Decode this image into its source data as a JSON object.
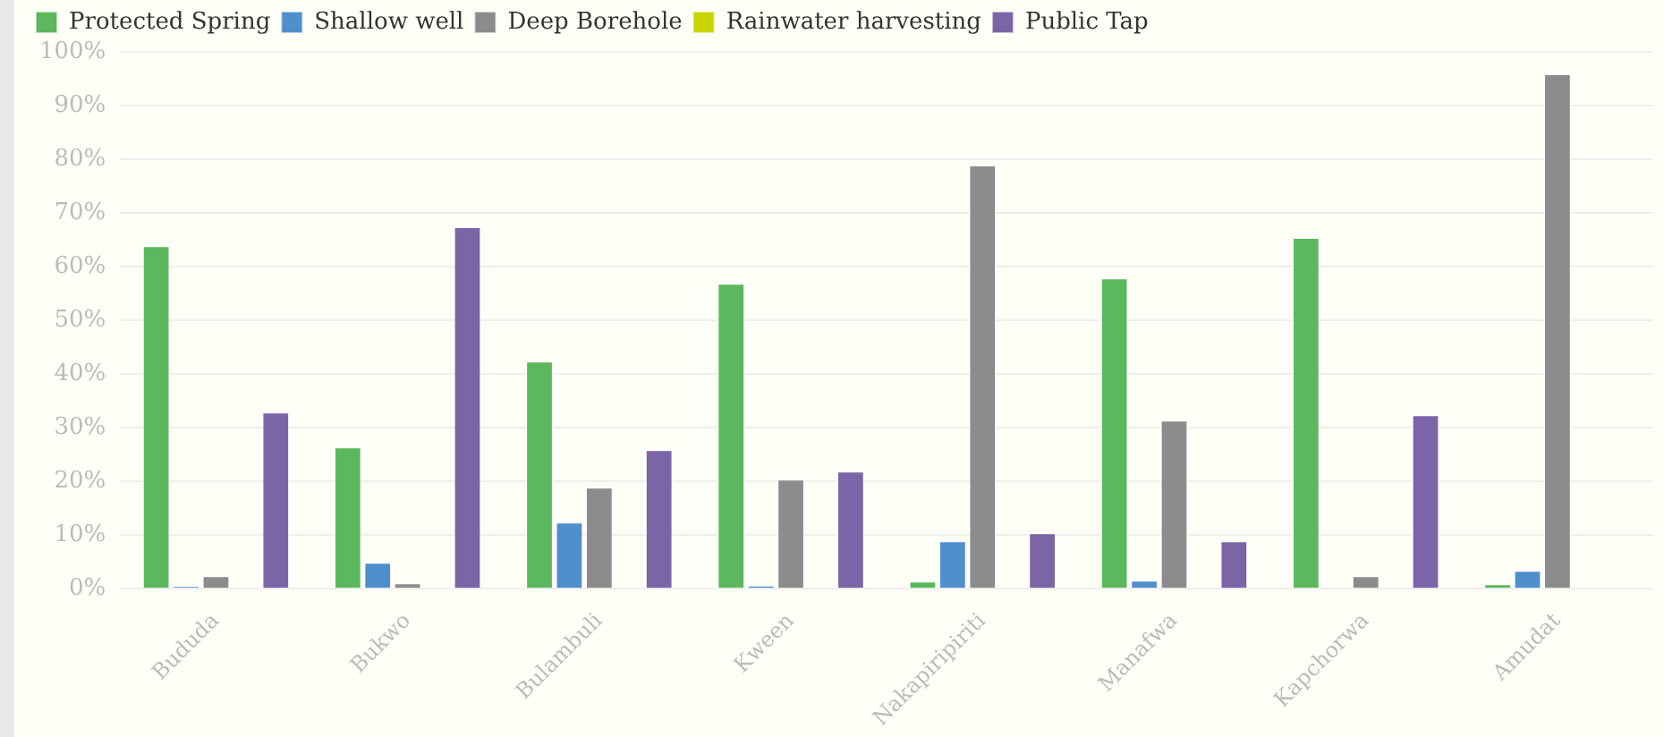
{
  "chart_data": {
    "type": "bar",
    "categories": [
      "Bududa",
      "Bukwo",
      "Bulambuli",
      "Kween",
      "Nakapiripiriti",
      "Manafwa",
      "Kapchorwa",
      "Amudat"
    ],
    "series": [
      {
        "name": "Protected Spring",
        "color": "#5cb85c",
        "values": [
          64,
          26.5,
          42.5,
          57,
          1.5,
          58,
          65.5,
          1
        ]
      },
      {
        "name": "Shallow well",
        "color": "#4f8fcc",
        "values": [
          0.5,
          5,
          12.5,
          0.7,
          9,
          1.7,
          0,
          3.5
        ]
      },
      {
        "name": "Deep Borehole",
        "color": "#8c8c8c",
        "values": [
          2.5,
          1.2,
          19,
          20.5,
          79,
          31.5,
          2.5,
          96
        ]
      },
      {
        "name": "Rainwater harvesting",
        "color": "#c8d400",
        "values": [
          0,
          0,
          0,
          0,
          0,
          0,
          0,
          0
        ]
      },
      {
        "name": "Public Tap",
        "color": "#7b65a7",
        "values": [
          33,
          67.5,
          26,
          22,
          10.5,
          9,
          32.5,
          0
        ]
      }
    ],
    "ylim": [
      0,
      100
    ],
    "yticks": [
      {
        "value": 0,
        "label": "0%"
      },
      {
        "value": 10,
        "label": "10%"
      },
      {
        "value": 20,
        "label": "20%"
      },
      {
        "value": 30,
        "label": "30%"
      },
      {
        "value": 40,
        "label": "40%"
      },
      {
        "value": 50,
        "label": "50%"
      },
      {
        "value": 60,
        "label": "60%"
      },
      {
        "value": 70,
        "label": "70%"
      },
      {
        "value": 80,
        "label": "80%"
      },
      {
        "value": 90,
        "label": "90%"
      },
      {
        "value": 100,
        "label": "100%"
      }
    ],
    "grid": "y",
    "legend": "top left"
  }
}
